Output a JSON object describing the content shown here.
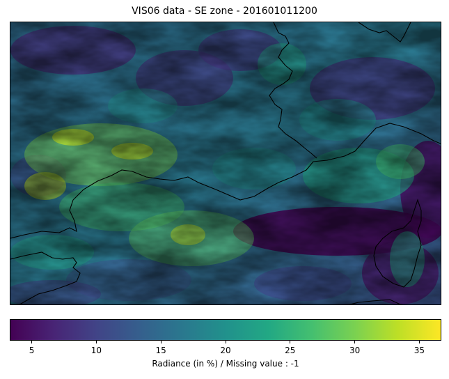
{
  "title": "VIS06 data - SE zone - 201601011200",
  "colorbar": {
    "label": "Radiance (in %) / Missing value : -1",
    "vmin": 3.3,
    "vmax": 36.7,
    "ticks": [
      "5",
      "10",
      "15",
      "20",
      "25",
      "30",
      "35"
    ],
    "colormap": [
      "#440154",
      "#482475",
      "#414487",
      "#355f8d",
      "#2a788e",
      "#21918c",
      "#22a884",
      "#44bf70",
      "#7ad151",
      "#bddf26",
      "#fde725"
    ]
  },
  "map": {
    "layer": "VIS06 radiance field",
    "coastline_color": "#000000"
  }
}
